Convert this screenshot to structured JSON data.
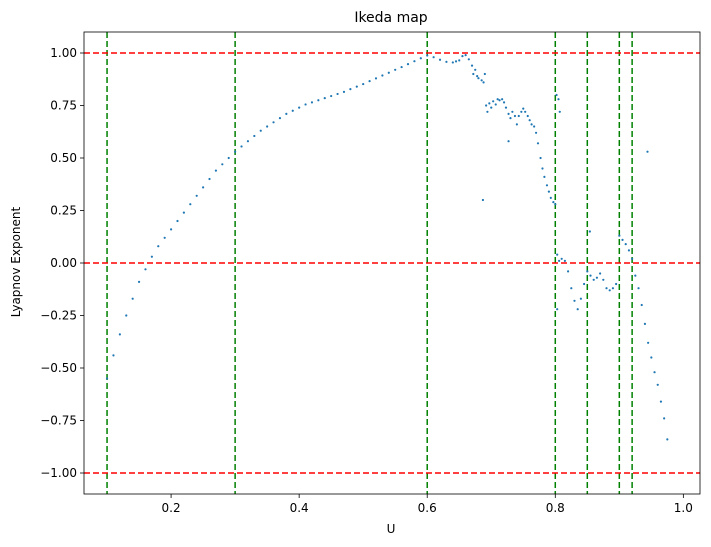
{
  "chart_data": {
    "type": "scatter",
    "title": "Ikeda map",
    "xlabel": "U",
    "ylabel": "Lyapnov Exponent",
    "xlim": [
      0.064,
      1.026
    ],
    "ylim": [
      -1.1,
      1.1
    ],
    "grid": false,
    "x_ticks": [
      {
        "value": 0.2,
        "label": "0.2"
      },
      {
        "value": 0.4,
        "label": "0.4"
      },
      {
        "value": 0.6,
        "label": "0.6"
      },
      {
        "value": 0.8,
        "label": "0.8"
      },
      {
        "value": 1.0,
        "label": "1.0"
      }
    ],
    "y_ticks": [
      {
        "value": 1.0,
        "label": "1.00"
      },
      {
        "value": 0.75,
        "label": "0.75"
      },
      {
        "value": 0.5,
        "label": "0.50"
      },
      {
        "value": 0.25,
        "label": "0.25"
      },
      {
        "value": 0.0,
        "label": "0.00"
      },
      {
        "value": -0.25,
        "label": "−0.25"
      },
      {
        "value": -0.5,
        "label": "−0.50"
      },
      {
        "value": -0.75,
        "label": "−0.75"
      },
      {
        "value": -1.0,
        "label": "−1.00"
      }
    ],
    "reference_lines": {
      "horizontal": [
        1.0,
        0.0,
        -1.0
      ],
      "horizontal_color": "#ff0000",
      "vertical": [
        0.1,
        0.3,
        0.6,
        0.8,
        0.85,
        0.9,
        0.92
      ],
      "vertical_color": "#008000"
    },
    "series": [
      {
        "color": "#1f77b4",
        "points": [
          [
            0.1,
            -0.55
          ],
          [
            0.11,
            -0.44
          ],
          [
            0.12,
            -0.34
          ],
          [
            0.13,
            -0.25
          ],
          [
            0.14,
            -0.17
          ],
          [
            0.15,
            -0.09
          ],
          [
            0.16,
            -0.03
          ],
          [
            0.17,
            0.03
          ],
          [
            0.18,
            0.08
          ],
          [
            0.19,
            0.12
          ],
          [
            0.2,
            0.16
          ],
          [
            0.21,
            0.2
          ],
          [
            0.22,
            0.24
          ],
          [
            0.23,
            0.28
          ],
          [
            0.24,
            0.32
          ],
          [
            0.25,
            0.36
          ],
          [
            0.26,
            0.4
          ],
          [
            0.27,
            0.44
          ],
          [
            0.28,
            0.47
          ],
          [
            0.29,
            0.5
          ],
          [
            0.3,
            0.53
          ],
          [
            0.31,
            0.555
          ],
          [
            0.32,
            0.58
          ],
          [
            0.33,
            0.605
          ],
          [
            0.34,
            0.63
          ],
          [
            0.35,
            0.65
          ],
          [
            0.36,
            0.67
          ],
          [
            0.37,
            0.69
          ],
          [
            0.38,
            0.71
          ],
          [
            0.39,
            0.725
          ],
          [
            0.4,
            0.74
          ],
          [
            0.41,
            0.755
          ],
          [
            0.42,
            0.765
          ],
          [
            0.43,
            0.775
          ],
          [
            0.44,
            0.785
          ],
          [
            0.45,
            0.795
          ],
          [
            0.46,
            0.805
          ],
          [
            0.47,
            0.815
          ],
          [
            0.48,
            0.828
          ],
          [
            0.49,
            0.84
          ],
          [
            0.5,
            0.852
          ],
          [
            0.51,
            0.866
          ],
          [
            0.52,
            0.879
          ],
          [
            0.53,
            0.893
          ],
          [
            0.54,
            0.906
          ],
          [
            0.55,
            0.92
          ],
          [
            0.56,
            0.933
          ],
          [
            0.57,
            0.947
          ],
          [
            0.58,
            0.961
          ],
          [
            0.59,
            0.975
          ],
          [
            0.6,
            0.988
          ],
          [
            0.61,
            0.98
          ],
          [
            0.62,
            0.968
          ],
          [
            0.63,
            0.958
          ],
          [
            0.64,
            0.955
          ],
          [
            0.645,
            0.96
          ],
          [
            0.65,
            0.965
          ],
          [
            0.655,
            0.985
          ],
          [
            0.66,
            0.99
          ],
          [
            0.665,
            0.97
          ],
          [
            0.67,
            0.94
          ],
          [
            0.672,
            0.9
          ],
          [
            0.675,
            0.92
          ],
          [
            0.678,
            0.89
          ],
          [
            0.68,
            0.88
          ],
          [
            0.685,
            0.87
          ],
          [
            0.688,
            0.86
          ],
          [
            0.69,
            0.9
          ],
          [
            0.692,
            0.75
          ],
          [
            0.694,
            0.72
          ],
          [
            0.697,
            0.76
          ],
          [
            0.7,
            0.74
          ],
          [
            0.703,
            0.77
          ],
          [
            0.707,
            0.755
          ],
          [
            0.71,
            0.78
          ],
          [
            0.713,
            0.775
          ],
          [
            0.717,
            0.78
          ],
          [
            0.72,
            0.765
          ],
          [
            0.723,
            0.74
          ],
          [
            0.727,
            0.71
          ],
          [
            0.73,
            0.69
          ],
          [
            0.733,
            0.72
          ],
          [
            0.737,
            0.7
          ],
          [
            0.74,
            0.66
          ],
          [
            0.743,
            0.7
          ],
          [
            0.747,
            0.72
          ],
          [
            0.75,
            0.735
          ],
          [
            0.753,
            0.72
          ],
          [
            0.757,
            0.7
          ],
          [
            0.76,
            0.68
          ],
          [
            0.763,
            0.66
          ],
          [
            0.767,
            0.65
          ],
          [
            0.77,
            0.62
          ],
          [
            0.773,
            0.57
          ],
          [
            0.777,
            0.5
          ],
          [
            0.78,
            0.45
          ],
          [
            0.783,
            0.41
          ],
          [
            0.787,
            0.37
          ],
          [
            0.79,
            0.34
          ],
          [
            0.793,
            0.31
          ],
          [
            0.797,
            0.29
          ],
          [
            0.8,
            0.28
          ],
          [
            0.802,
            0.8
          ],
          [
            0.805,
            0.78
          ],
          [
            0.807,
            0.72
          ],
          [
            0.803,
            0.04
          ],
          [
            0.806,
            0.01
          ],
          [
            0.81,
            0.02
          ],
          [
            0.815,
            0.01
          ],
          [
            0.82,
            -0.04
          ],
          [
            0.825,
            -0.12
          ],
          [
            0.83,
            -0.18
          ],
          [
            0.835,
            -0.22
          ],
          [
            0.84,
            -0.17
          ],
          [
            0.845,
            -0.1
          ],
          [
            0.85,
            -0.04
          ],
          [
            0.855,
            -0.06
          ],
          [
            0.86,
            -0.08
          ],
          [
            0.865,
            -0.07
          ],
          [
            0.87,
            -0.05
          ],
          [
            0.875,
            -0.08
          ],
          [
            0.88,
            -0.12
          ],
          [
            0.885,
            -0.13
          ],
          [
            0.89,
            -0.12
          ],
          [
            0.895,
            -0.1
          ],
          [
            0.9,
            0.13
          ],
          [
            0.905,
            0.11
          ],
          [
            0.91,
            0.09
          ],
          [
            0.915,
            0.06
          ],
          [
            0.92,
            0.02
          ],
          [
            0.925,
            -0.06
          ],
          [
            0.93,
            -0.12
          ],
          [
            0.935,
            -0.2
          ],
          [
            0.94,
            -0.29
          ],
          [
            0.945,
            -0.38
          ],
          [
            0.95,
            -0.45
          ],
          [
            0.955,
            -0.52
          ],
          [
            0.96,
            -0.58
          ],
          [
            0.965,
            -0.66
          ],
          [
            0.97,
            -0.74
          ],
          [
            0.975,
            -0.84
          ],
          [
            0.687,
            0.3
          ],
          [
            0.727,
            0.58
          ],
          [
            0.803,
            -0.22
          ],
          [
            0.854,
            0.15
          ],
          [
            0.944,
            0.53
          ]
        ]
      }
    ]
  }
}
